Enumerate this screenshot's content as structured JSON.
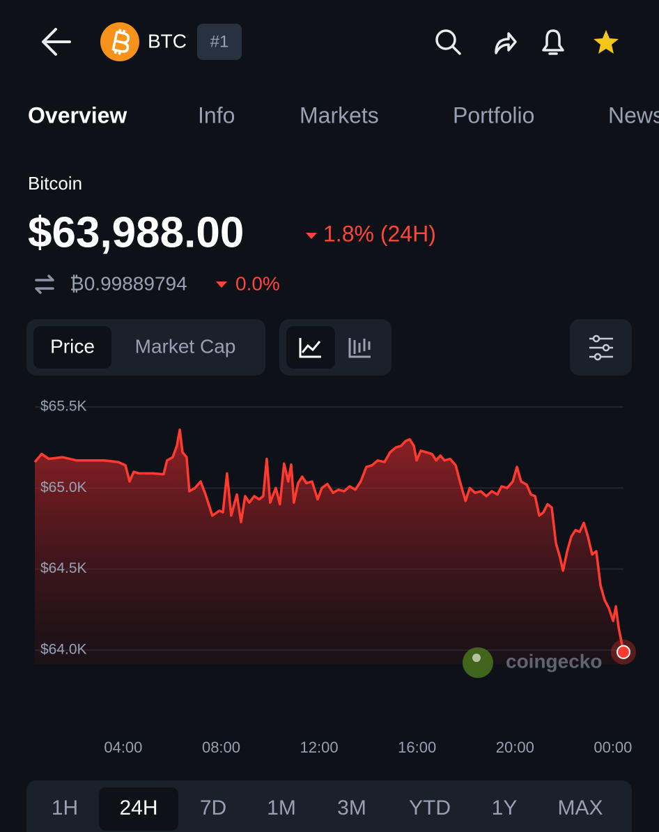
{
  "header": {
    "symbol": "BTC",
    "rank": "#1"
  },
  "tabs": [
    "Overview",
    "Info",
    "Markets",
    "Portfolio",
    "News"
  ],
  "coin": {
    "name": "Bitcoin",
    "price": "$63,988.00",
    "change": "1.8% (24H)",
    "btc_price": "₿0.99889794",
    "btc_change": "0.0%"
  },
  "toggle": [
    "Price",
    "Market Cap"
  ],
  "ranges": [
    "1H",
    "24H",
    "7D",
    "1M",
    "3M",
    "YTD",
    "1Y",
    "MAX"
  ],
  "watermark": "coingecko",
  "chart_data": {
    "type": "line",
    "color": "#ff3b30",
    "grid": true,
    "x": [
      0.39,
      0.67,
      0.96,
      1.52,
      2.09,
      2.66,
      3.23,
      3.8,
      4.09,
      4.26,
      4.43,
      4.65,
      5.22,
      5.65,
      5.79,
      6.02,
      6.19,
      6.31,
      6.42,
      6.59,
      6.7,
      6.93,
      7.16,
      7.36,
      7.64,
      7.93,
      8.07,
      8.24,
      8.41,
      8.64,
      8.81,
      8.98,
      9.15,
      9.35,
      9.55,
      9.72,
      9.86,
      10.0,
      10.23,
      10.4,
      10.57,
      10.74,
      10.86,
      10.97,
      11.14,
      11.31,
      11.48,
      11.71,
      11.94,
      12.11,
      12.34,
      12.57,
      12.79,
      13.02,
      13.25,
      13.48,
      13.7,
      13.93,
      14.16,
      14.39,
      14.67,
      14.9,
      15.13,
      15.35,
      15.53,
      15.7,
      15.87,
      15.98,
      16.15,
      16.38,
      16.61,
      16.78,
      16.95,
      17.12,
      17.35,
      17.58,
      17.75,
      17.98,
      18.15,
      18.37,
      18.6,
      18.83,
      19.05,
      19.28,
      19.45,
      19.68,
      19.91,
      20.08,
      20.25,
      20.48,
      20.65,
      20.82,
      20.99,
      21.16,
      21.33,
      21.5,
      21.67,
      21.84,
      21.96,
      22.13,
      22.3,
      22.47,
      22.64,
      22.81,
      22.98,
      23.15,
      23.32,
      23.49,
      23.66,
      23.83,
      24.01,
      24.12,
      24.23,
      24.43
    ],
    "values": [
      65160,
      65210,
      65180,
      65190,
      65170,
      65170,
      65170,
      65160,
      65140,
      65040,
      65100,
      65090,
      65090,
      65085,
      65170,
      65190,
      65260,
      65360,
      65220,
      65190,
      64980,
      65000,
      65040,
      64960,
      64830,
      64860,
      64850,
      65090,
      64830,
      64960,
      64790,
      64950,
      64910,
      64950,
      64930,
      64950,
      65180,
      64910,
      65000,
      64900,
      65150,
      65040,
      65145,
      64910,
      65030,
      65070,
      65030,
      65040,
      64930,
      65000,
      65025,
      64970,
      64990,
      64980,
      65010,
      64990,
      65040,
      65130,
      65140,
      65170,
      65160,
      65220,
      65250,
      65260,
      65290,
      65300,
      65260,
      65170,
      65230,
      65220,
      65210,
      65170,
      65200,
      65170,
      65180,
      65140,
      65040,
      64920,
      65000,
      64970,
      64980,
      64950,
      64980,
      64960,
      65010,
      65000,
      65040,
      65130,
      65040,
      65020,
      64960,
      64950,
      64830,
      64850,
      64900,
      64880,
      64660,
      64570,
      64490,
      64610,
      64700,
      64740,
      64730,
      64785,
      64700,
      64590,
      64610,
      64400,
      64310,
      64260,
      64180,
      64270,
      64140,
      63988
    ],
    "xlim": [
      0.39,
      24.43
    ],
    "xticks": [
      {
        "value": 4,
        "label": "04:00"
      },
      {
        "value": 8,
        "label": "08:00"
      },
      {
        "value": 12,
        "label": "12:00"
      },
      {
        "value": 16,
        "label": "16:00"
      },
      {
        "value": 20,
        "label": "20:00"
      },
      {
        "value": 24,
        "label": "00:00"
      }
    ],
    "ylim": [
      64000,
      65500
    ],
    "yticks": [
      {
        "value": 64000,
        "label": "$64.0K"
      },
      {
        "value": 64500,
        "label": "$64.5K"
      },
      {
        "value": 65000,
        "label": "$65.0K"
      },
      {
        "value": 65500,
        "label": "$65.5K"
      }
    ]
  }
}
